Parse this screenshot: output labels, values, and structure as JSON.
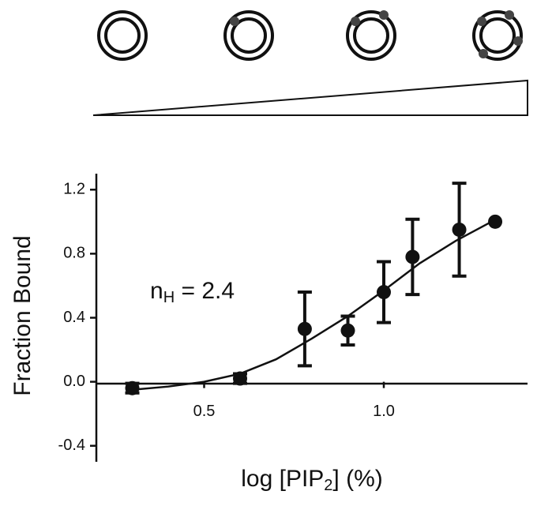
{
  "chart_data": {
    "type": "scatter",
    "annotation": {
      "text": "n",
      "subscript": "H",
      "rest": " = 2.4"
    },
    "x_label": {
      "text": "log [PIP",
      "subscript": "2",
      "rest": "] (%)"
    },
    "y_label": "Fraction Bound",
    "xlim": [
      0.2,
      1.4
    ],
    "xticks": [
      0.5,
      {
        "value": 1,
        "label": "1.0"
      }
    ],
    "ylim": [
      -0.5,
      1.3
    ],
    "yticks": [
      {
        "value": -0.4,
        "label": "-0.4"
      },
      {
        "value": 0,
        "label": "0.0"
      },
      0.4,
      0.8,
      1.2
    ],
    "color": "#111111",
    "x": [
      0.3,
      0.6,
      0.78,
      0.9,
      1.0,
      1.08,
      1.21,
      1.31
    ],
    "values": [
      -0.04,
      0.02,
      0.33,
      0.32,
      0.56,
      0.78,
      0.95,
      1.0
    ],
    "errors": [
      0.03,
      0.03,
      0.23,
      0.09,
      0.19,
      0.235,
      0.29,
      null
    ],
    "fit": {
      "x": [
        0.3,
        0.4,
        0.5,
        0.6,
        0.7,
        0.8,
        0.9,
        1.0,
        1.1,
        1.2,
        1.3
      ],
      "values": [
        -0.05,
        -0.03,
        0.0,
        0.05,
        0.14,
        0.27,
        0.41,
        0.57,
        0.74,
        0.88,
        1.0
      ]
    }
  }
}
